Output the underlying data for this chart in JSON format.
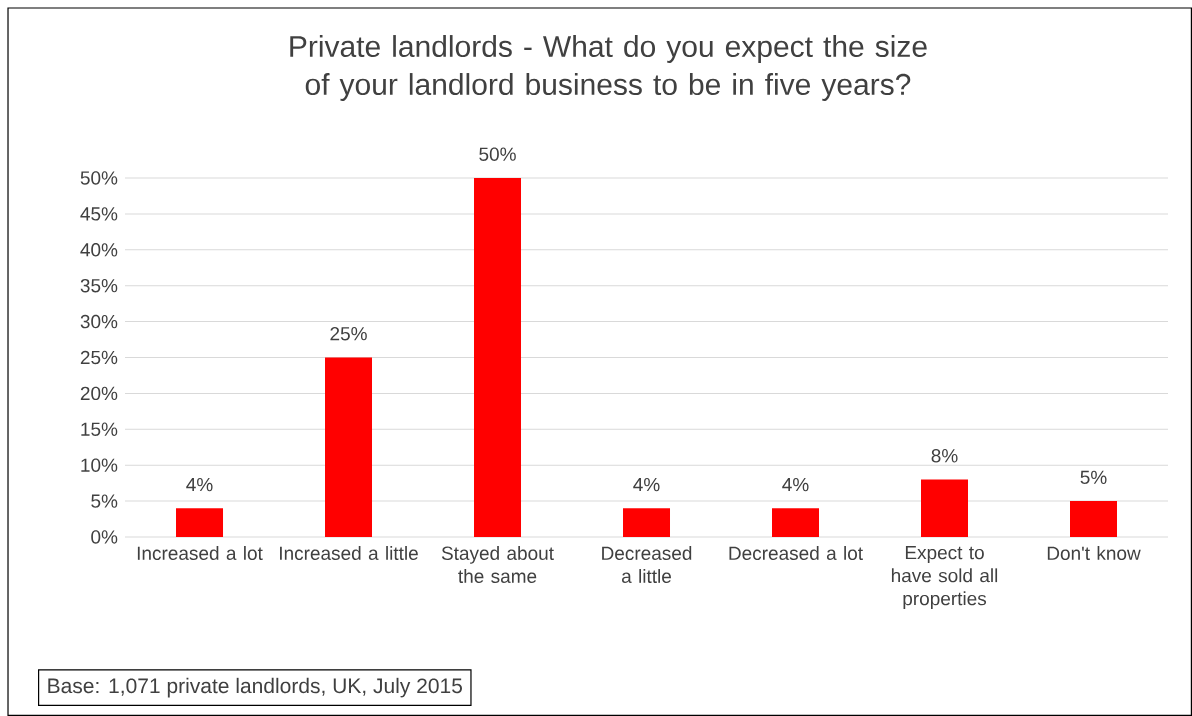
{
  "chart_data": {
    "type": "bar",
    "title": "Private landlords - What do you expect the size of your landlord business to be in five years?",
    "categories": [
      "Increased a lot",
      "Increased a little",
      "Stayed about the same",
      "Decreased a little",
      "Decreased a lot",
      "Expect to have sold all properties",
      "Don't know"
    ],
    "values": [
      4,
      25,
      50,
      4,
      4,
      8,
      5
    ],
    "value_labels": [
      "4%",
      "25%",
      "50%",
      "4%",
      "4%",
      "8%",
      "5%"
    ],
    "color": "#ff0000",
    "ylim": [
      0,
      50
    ],
    "yticks": [
      {
        "value": 0,
        "label": "0%"
      },
      {
        "value": 5,
        "label": "5%"
      },
      {
        "value": 10,
        "label": "10%"
      },
      {
        "value": 15,
        "label": "15%"
      },
      {
        "value": 20,
        "label": "20%"
      },
      {
        "value": 25,
        "label": "25%"
      },
      {
        "value": 30,
        "label": "30%"
      },
      {
        "value": 35,
        "label": "35%"
      },
      {
        "value": 40,
        "label": "40%"
      },
      {
        "value": 45,
        "label": "45%"
      },
      {
        "value": 50,
        "label": "50%"
      }
    ],
    "grid": "y",
    "annotations": [
      "Base: 1,071 private landlords, UK, July 2015"
    ]
  }
}
